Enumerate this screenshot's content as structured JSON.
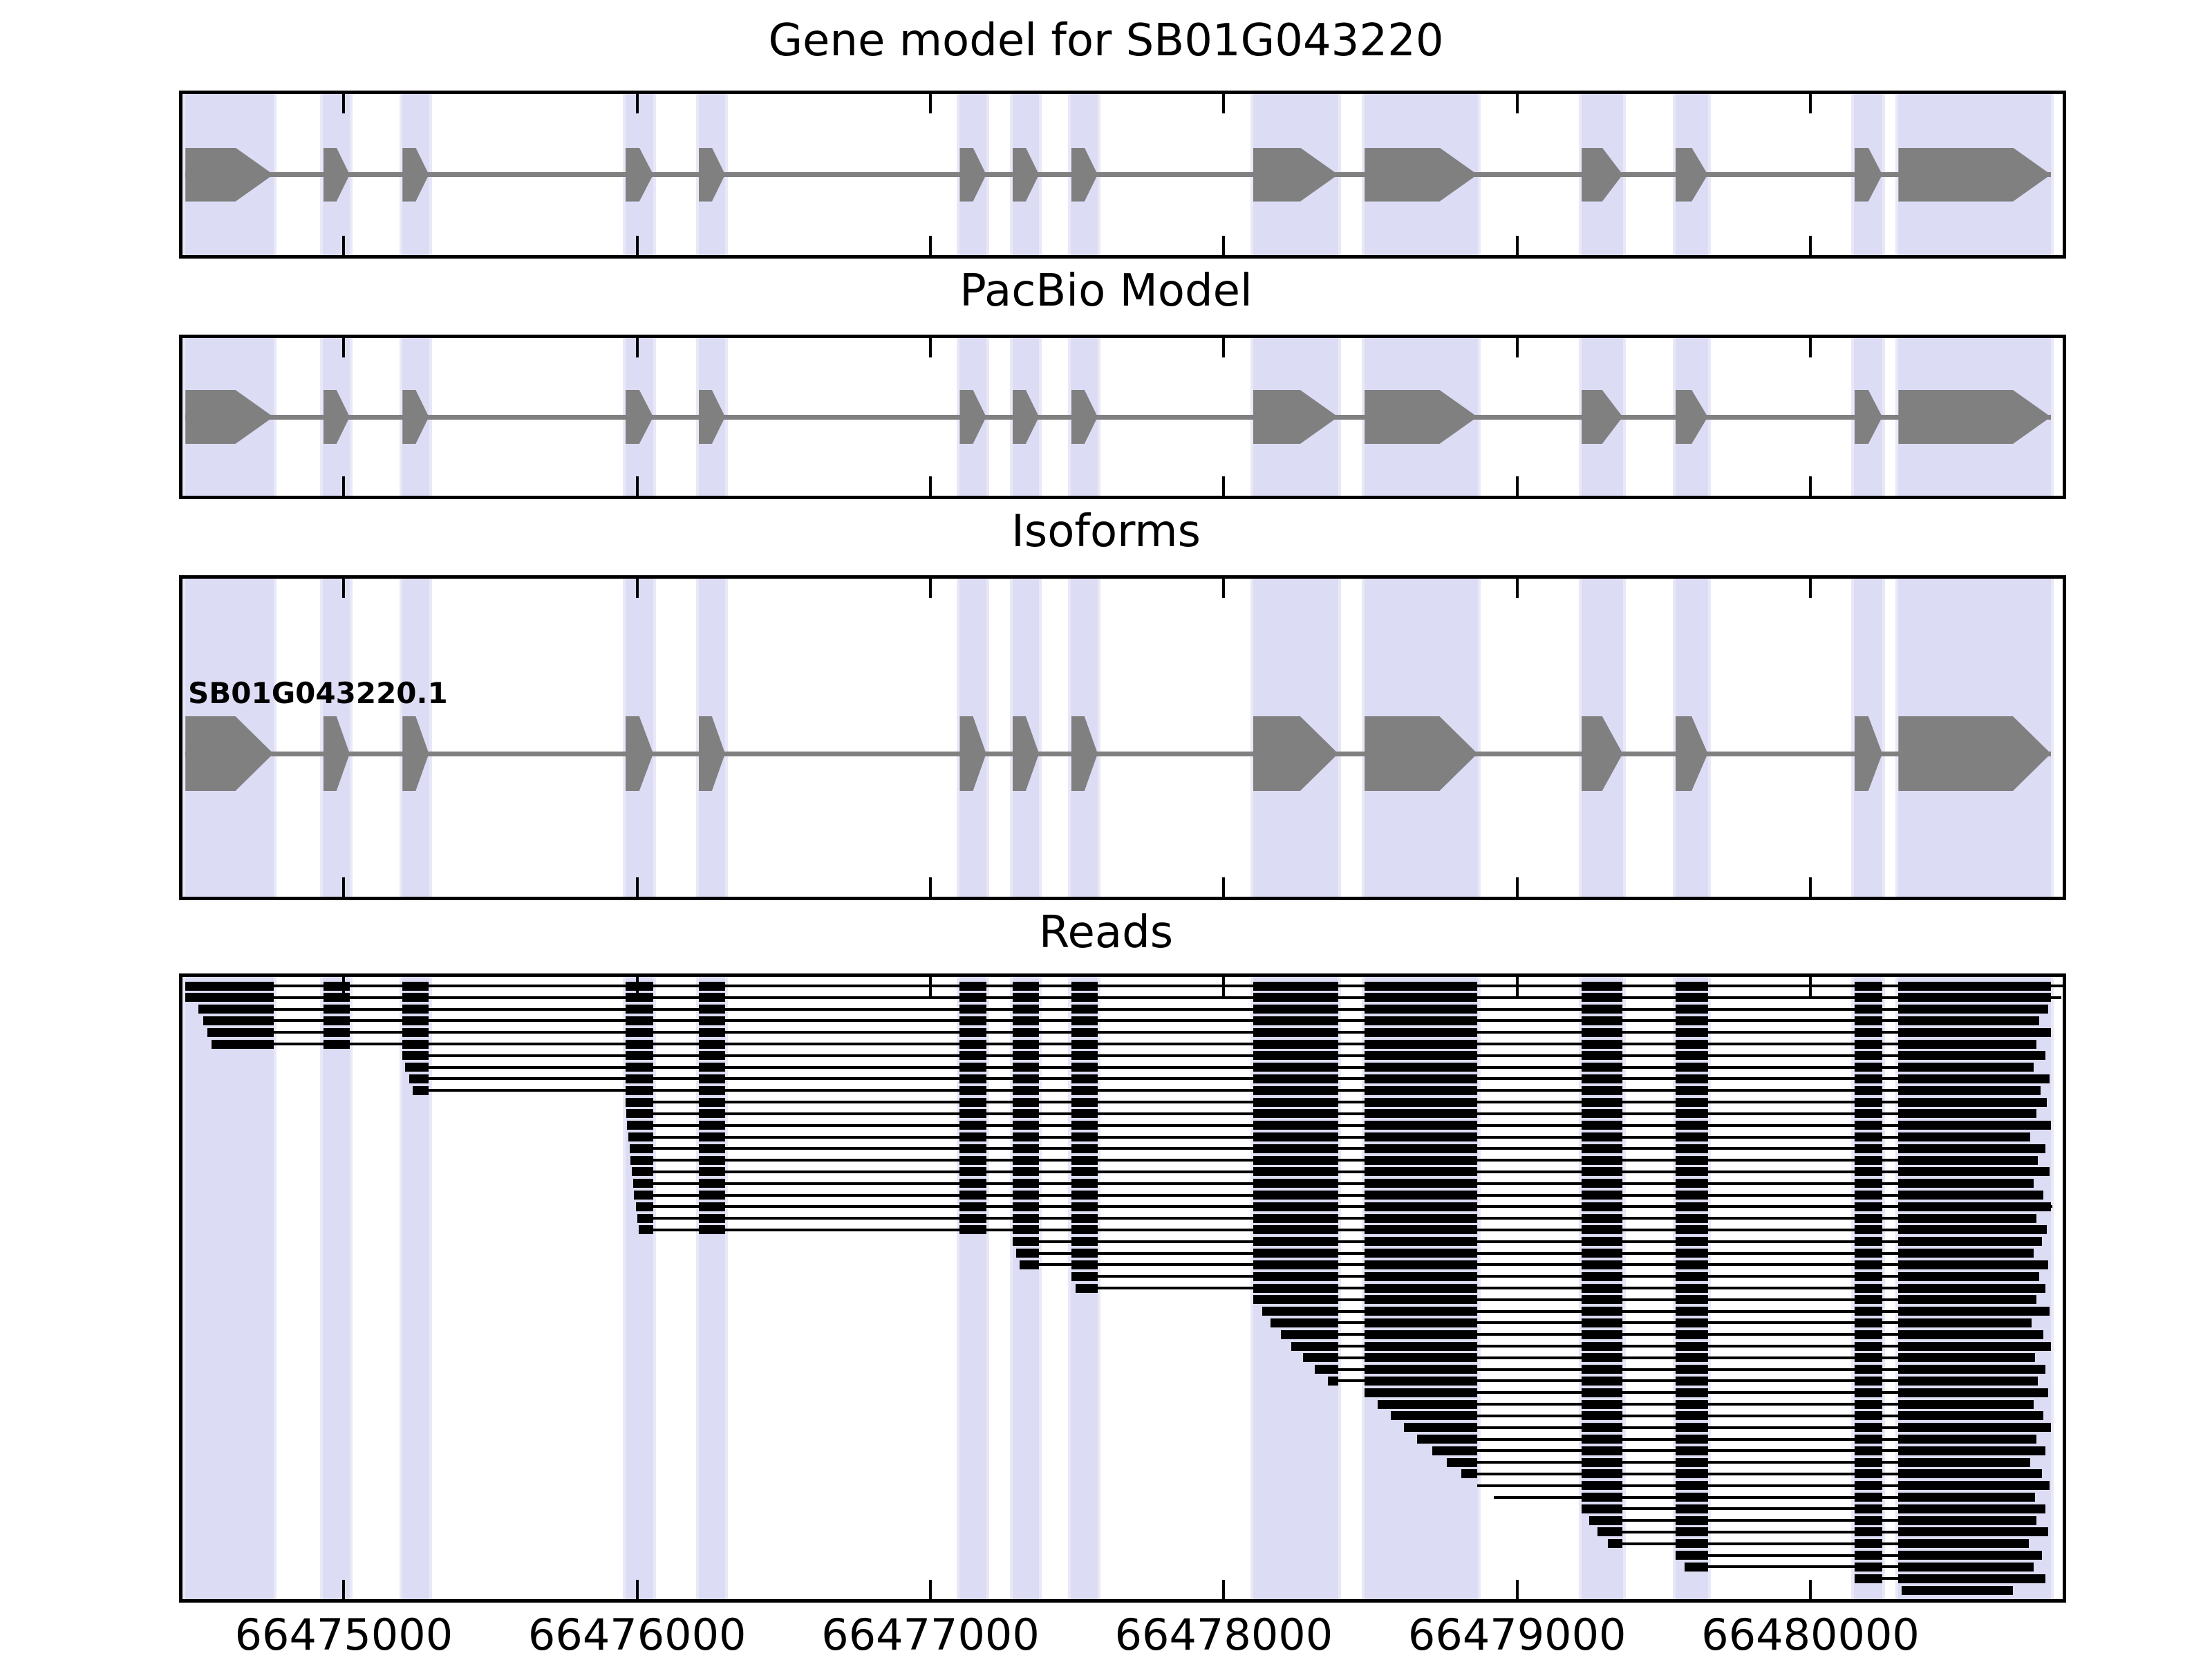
{
  "figure_title": "Gene model for SB01G043220",
  "panels": [
    {
      "key": "gene_model",
      "title": "Gene model for SB01G043220"
    },
    {
      "key": "pacbio_model",
      "title": "PacBio Model"
    },
    {
      "key": "isoforms",
      "title": "Isoforms",
      "isoform_label": "SB01G043220.1"
    },
    {
      "key": "reads",
      "title": "Reads"
    }
  ],
  "x_axis": {
    "tick_labels": [
      "66475000",
      "66476000",
      "66477000",
      "66478000",
      "66479000",
      "66480000"
    ]
  },
  "colors": {
    "exon_fill": "#808080",
    "intron_line": "#808080",
    "exon_band": "#dcdcf5",
    "band_edge": "#e9e8f7",
    "read_fill": "#000000",
    "axis": "#000000",
    "background": "#ffffff"
  },
  "chart_data": {
    "type": "gene-model-tracks",
    "title": "Gene model for SB01G043220",
    "gene_id": "SB01G043220",
    "isoform_ids": [
      "SB01G043220.1"
    ],
    "strand": "+",
    "xlim": [
      66474450,
      66480860
    ],
    "x_ticks": [
      66475000,
      66476000,
      66477000,
      66478000,
      66479000,
      66480000
    ],
    "tracks": [
      "Gene model",
      "PacBio Model",
      "Isoforms",
      "Reads"
    ],
    "exons": [
      [
        66474460,
        66474760
      ],
      [
        66474930,
        66475020
      ],
      [
        66475200,
        66475290
      ],
      [
        66475960,
        66476055
      ],
      [
        66476210,
        66476300
      ],
      [
        66477100,
        66477190
      ],
      [
        66477280,
        66477370
      ],
      [
        66477480,
        66477570
      ],
      [
        66478100,
        66478390
      ],
      [
        66478480,
        66478865
      ],
      [
        66479220,
        66479360
      ],
      [
        66479540,
        66479650
      ],
      [
        66480150,
        66480245
      ],
      [
        66480300,
        66480820
      ]
    ],
    "reads": [
      {
        "start": 66474460,
        "end": 66480860
      },
      {
        "start": 66474460,
        "end": 66480855
      },
      {
        "start": 66474505,
        "end": 66480810
      },
      {
        "start": 66474520,
        "end": 66480780
      },
      {
        "start": 66474535,
        "end": 66480820
      },
      {
        "start": 66474550,
        "end": 66480770
      },
      {
        "start": 66475200,
        "end": 66480800
      },
      {
        "start": 66475210,
        "end": 66480760
      },
      {
        "start": 66475222,
        "end": 66480815
      },
      {
        "start": 66475235,
        "end": 66480785
      },
      {
        "start": 66475960,
        "end": 66480805
      },
      {
        "start": 66475963,
        "end": 66480770
      },
      {
        "start": 66475966,
        "end": 66480820
      },
      {
        "start": 66475970,
        "end": 66480750
      },
      {
        "start": 66475974,
        "end": 66480800
      },
      {
        "start": 66475978,
        "end": 66480775
      },
      {
        "start": 66475982,
        "end": 66480815
      },
      {
        "start": 66475986,
        "end": 66480760
      },
      {
        "start": 66475990,
        "end": 66480795
      },
      {
        "start": 66475995,
        "end": 66480825
      },
      {
        "start": 66476000,
        "end": 66480770
      },
      {
        "start": 66476005,
        "end": 66480805
      },
      {
        "start": 66477280,
        "end": 66480790
      },
      {
        "start": 66477292,
        "end": 66480760
      },
      {
        "start": 66477305,
        "end": 66480810
      },
      {
        "start": 66477480,
        "end": 66480780
      },
      {
        "start": 66477495,
        "end": 66480800
      },
      {
        "start": 66478100,
        "end": 66480770
      },
      {
        "start": 66478130,
        "end": 66480815
      },
      {
        "start": 66478160,
        "end": 66480755
      },
      {
        "start": 66478195,
        "end": 66480795
      },
      {
        "start": 66478230,
        "end": 66480820
      },
      {
        "start": 66478270,
        "end": 66480765
      },
      {
        "start": 66478310,
        "end": 66480800
      },
      {
        "start": 66478355,
        "end": 66480775
      },
      {
        "start": 66478480,
        "end": 66480810
      },
      {
        "start": 66478525,
        "end": 66480760
      },
      {
        "start": 66478570,
        "end": 66480795
      },
      {
        "start": 66478615,
        "end": 66480820
      },
      {
        "start": 66478660,
        "end": 66480770
      },
      {
        "start": 66478710,
        "end": 66480800
      },
      {
        "start": 66478760,
        "end": 66480750
      },
      {
        "start": 66478810,
        "end": 66480790
      },
      {
        "start": 66478865,
        "end": 66480815
      },
      {
        "start": 66478920,
        "end": 66480765
      },
      {
        "start": 66479220,
        "end": 66480800
      },
      {
        "start": 66479245,
        "end": 66480770
      },
      {
        "start": 66479275,
        "end": 66480810
      },
      {
        "start": 66479310,
        "end": 66480745
      },
      {
        "start": 66479540,
        "end": 66480790
      },
      {
        "start": 66479570,
        "end": 66480760
      },
      {
        "start": 66480150,
        "end": 66480800
      },
      {
        "start": 66480310,
        "end": 66480690
      }
    ]
  }
}
